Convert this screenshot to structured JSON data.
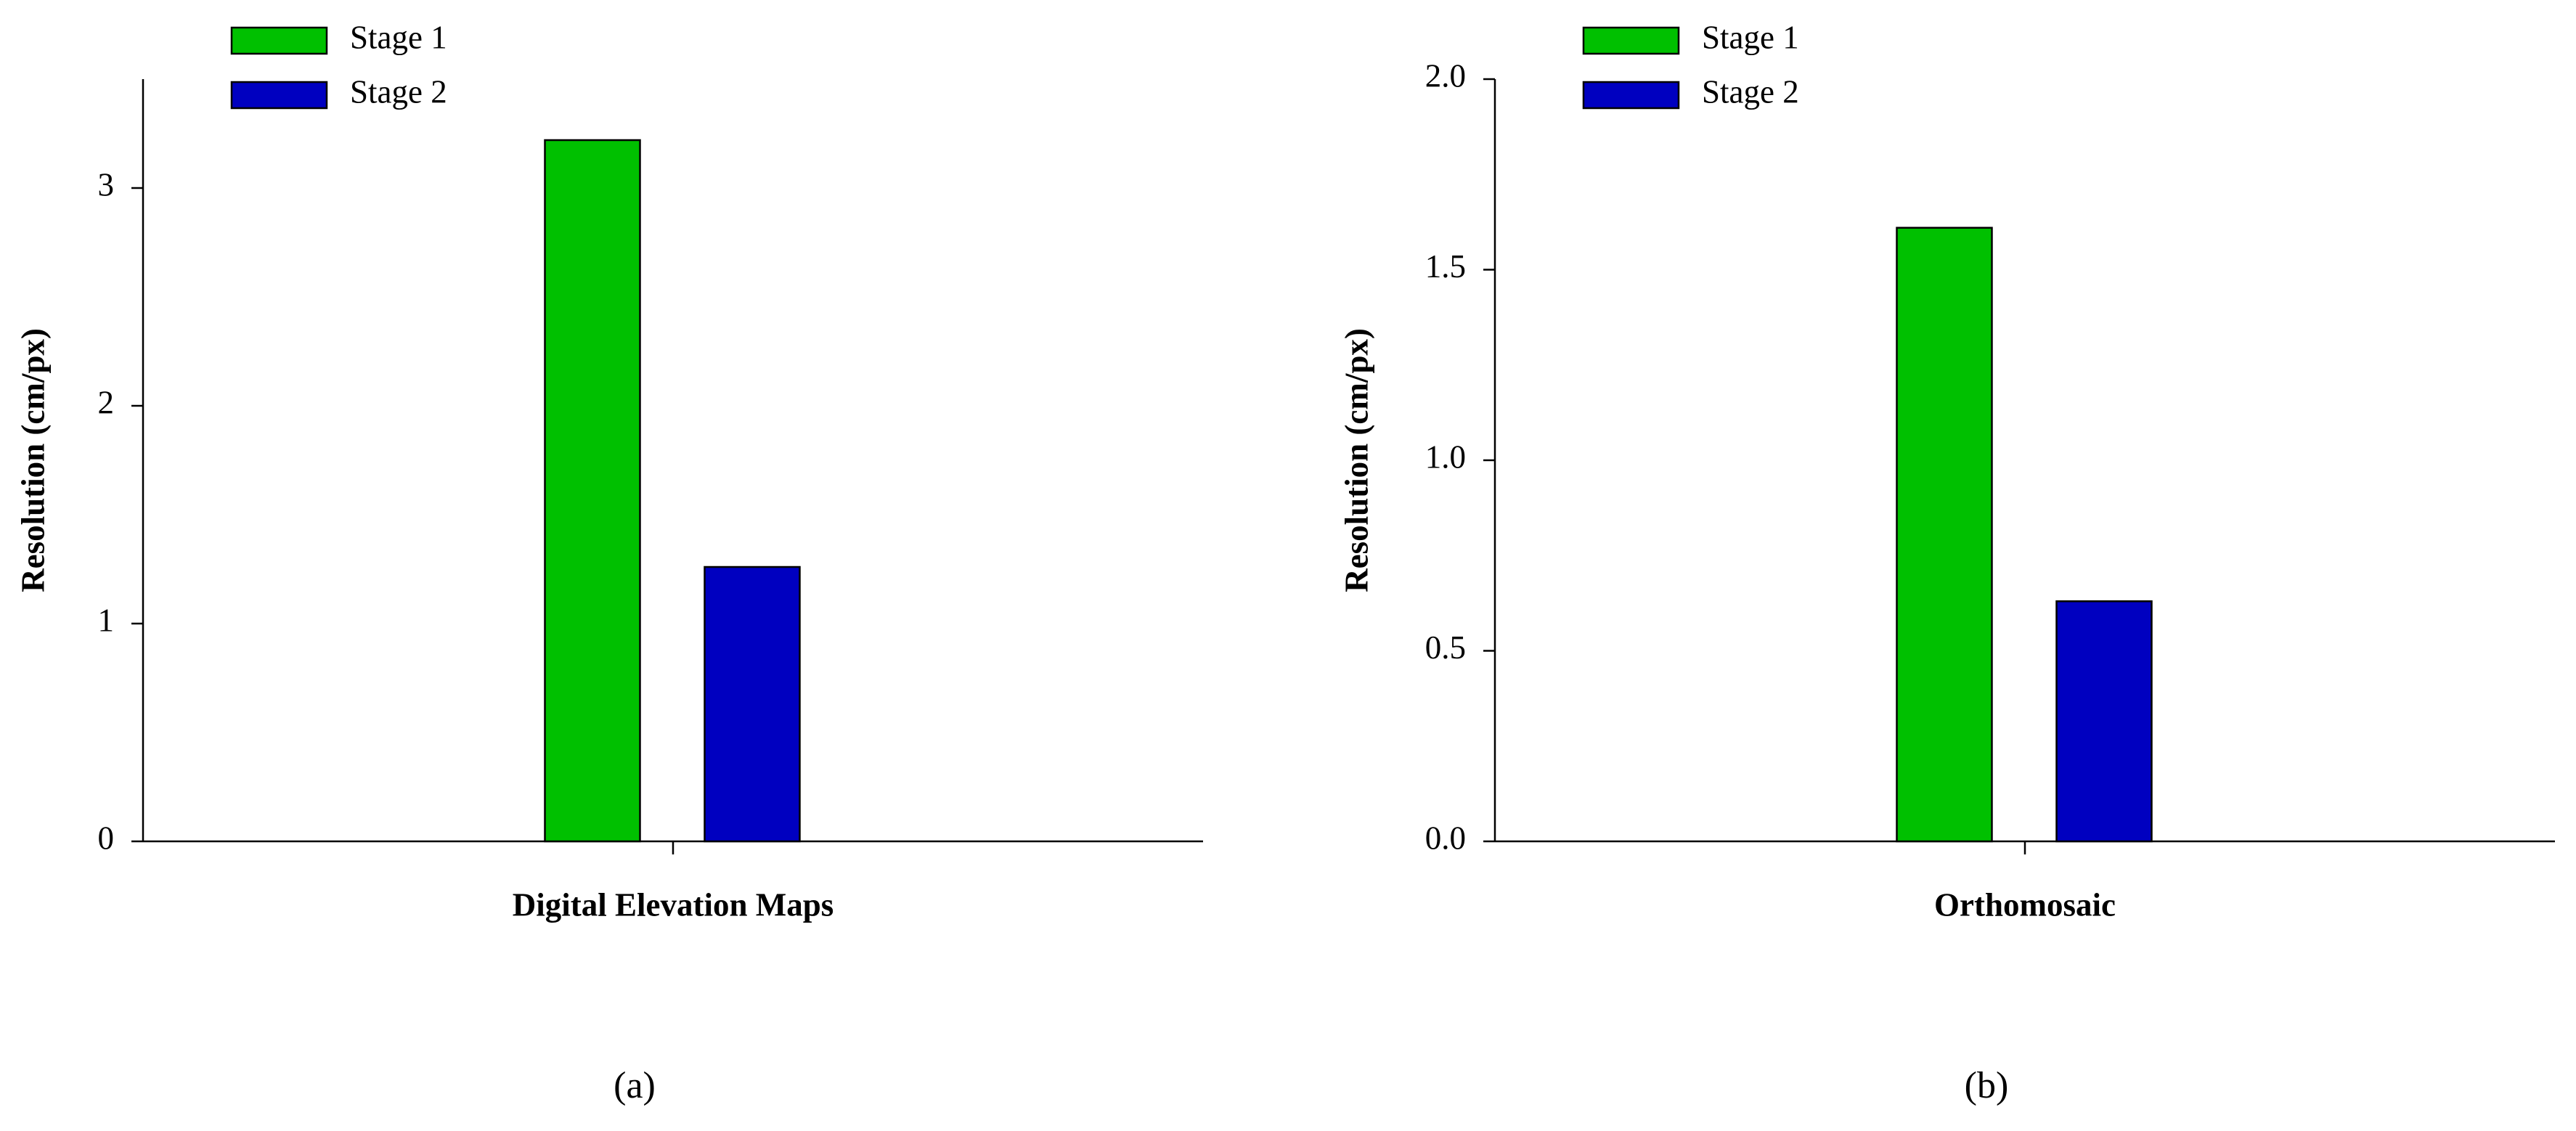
{
  "chart_data": [
    {
      "type": "bar",
      "ylabel": "Resolution (cm/px)",
      "categories": [
        "Digital Elevation Maps"
      ],
      "series": [
        {
          "name": "Stage 1",
          "color": "#00c000",
          "values": [
            3.22
          ]
        },
        {
          "name": "Stage 2",
          "color": "#0000c0",
          "values": [
            1.26
          ]
        }
      ],
      "ylim": [
        0,
        3.5
      ],
      "yticks": [
        0,
        1,
        2,
        3
      ],
      "panel_label": "(a)"
    },
    {
      "type": "bar",
      "ylabel": "Resolution (cm/px)",
      "categories": [
        "Orthomosaic"
      ],
      "series": [
        {
          "name": "Stage 1",
          "color": "#00c000",
          "values": [
            1.61
          ]
        },
        {
          "name": "Stage 2",
          "color": "#0000c0",
          "values": [
            0.63
          ]
        }
      ],
      "ylim": [
        0,
        2
      ],
      "yticks": [
        {
          "value": 0,
          "label": "0.0"
        },
        0.5,
        {
          "value": 1,
          "label": "1.0"
        },
        1.5,
        {
          "value": 2,
          "label": "2.0"
        }
      ],
      "panel_label": "(b)"
    }
  ]
}
